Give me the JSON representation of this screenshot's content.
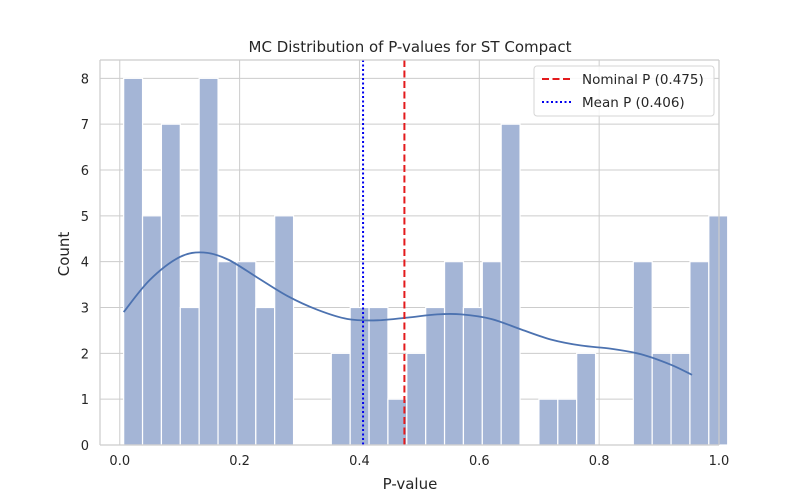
{
  "chart_data": {
    "type": "bar",
    "title": "MC Distribution of P-values for ST Compact",
    "xlabel": "P-value",
    "ylabel": "Count",
    "xlim": [
      -0.033,
      1.0
    ],
    "ylim": [
      0,
      8.4
    ],
    "xticks": [
      "0.0",
      "0.2",
      "0.4",
      "0.6",
      "0.8",
      "1.0"
    ],
    "xtick_values": [
      0.0,
      0.2,
      0.4,
      0.6,
      0.8,
      1.0
    ],
    "yticks": [
      "0",
      "1",
      "2",
      "3",
      "4",
      "5",
      "6",
      "7",
      "8"
    ],
    "yaxis_tick_values": [
      0,
      1,
      2,
      3,
      4,
      5,
      6,
      7,
      8
    ],
    "grid": true,
    "bar_color": "#a4b5d6",
    "kde_color": "#4c72b0",
    "bins": {
      "start": 0.0065,
      "width": 0.0315,
      "counts": [
        8,
        5,
        7,
        3,
        8,
        4,
        4,
        3,
        5,
        0,
        0,
        2,
        3,
        3,
        1,
        2,
        3,
        4,
        3,
        4,
        7,
        0,
        1,
        1,
        2,
        0,
        0,
        4,
        2,
        2,
        4,
        5
      ]
    },
    "kde": {
      "x": [
        0.0065,
        0.05,
        0.1,
        0.14,
        0.18,
        0.23,
        0.28,
        0.33,
        0.38,
        0.43,
        0.48,
        0.53,
        0.57,
        0.62,
        0.67,
        0.72,
        0.77,
        0.82,
        0.87,
        0.92,
        0.955
      ],
      "y": [
        2.9,
        3.6,
        4.1,
        4.2,
        4.05,
        3.65,
        3.25,
        2.95,
        2.75,
        2.72,
        2.78,
        2.85,
        2.85,
        2.75,
        2.52,
        2.3,
        2.17,
        2.1,
        1.98,
        1.75,
        1.53
      ]
    },
    "lines": [
      {
        "name": "Nominal P (0.475)",
        "x": 0.475,
        "color": "#e31a1c",
        "style": "dashed"
      },
      {
        "name": "Mean P (0.406)",
        "x": 0.406,
        "color": "#0000ee",
        "style": "dotted"
      }
    ],
    "legend_position": "top-right"
  }
}
